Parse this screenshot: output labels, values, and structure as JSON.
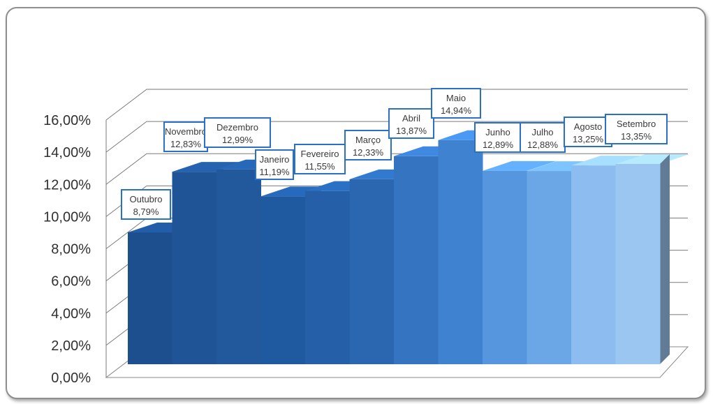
{
  "chart_data": {
    "type": "bar",
    "title": "",
    "xlabel": "",
    "ylabel": "",
    "ylim": [
      0,
      16
    ],
    "y_ticks": [
      "0,00%",
      "2,00%",
      "4,00%",
      "6,00%",
      "8,00%",
      "10,00%",
      "12,00%",
      "14,00%",
      "16,00%"
    ],
    "categories": [
      "Outubro",
      "Novembro",
      "Dezembro",
      "Janeiro",
      "Fevereiro",
      "Março",
      "Abril",
      "Maio",
      "Junho",
      "Julho",
      "Agosto",
      "Setembro"
    ],
    "values": [
      8.79,
      12.83,
      12.99,
      11.19,
      11.55,
      12.33,
      13.87,
      14.94,
      12.89,
      12.88,
      13.25,
      13.35
    ],
    "data_labels": [
      "8,79%",
      "12,83%",
      "12,99%",
      "11,19%",
      "11,55%",
      "12,33%",
      "13,87%",
      "14,94%",
      "12,89%",
      "12,88%",
      "13,25%",
      "13,35%"
    ],
    "bar_colors": [
      "#1d4f8f",
      "#1f5496",
      "#21599c",
      "#1f5aa0",
      "#245fa7",
      "#2a67b0",
      "#3574c0",
      "#3f82d0",
      "#5596de",
      "#6ba7e6",
      "#8dbdf0",
      "#9cc6f2"
    ],
    "grid": true,
    "style": "3d-column"
  }
}
